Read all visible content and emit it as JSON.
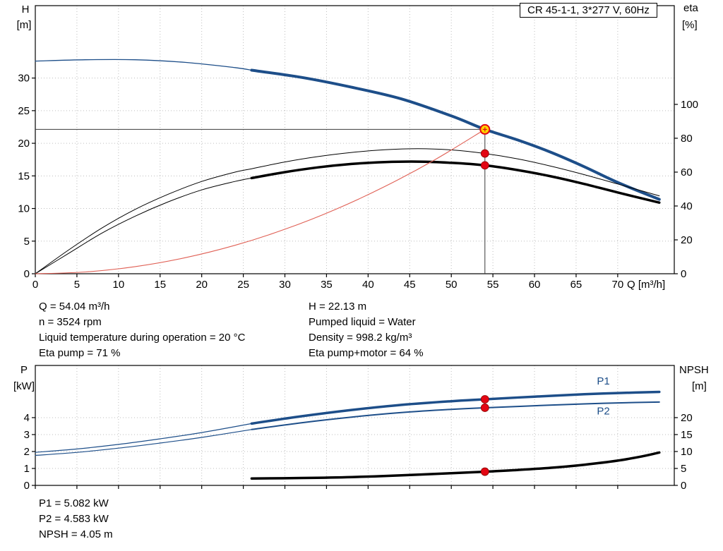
{
  "header": {
    "title_box": "CR 45-1-1, 3*277 V, 60Hz"
  },
  "axes_labels": {
    "h": "H",
    "h_unit": "[m]",
    "eta": "eta",
    "eta_unit": "[%]",
    "q_unit": "Q [m³/h]",
    "p": "P",
    "p_unit": "[kW]",
    "npsh": "NPSH",
    "npsh_unit": "[m]"
  },
  "annotations": {
    "left": [
      "Q = 54.04 m³/h",
      "n = 3524 rpm",
      "Liquid temperature during operation = 20 °C",
      "Eta pump = 71 %"
    ],
    "right": [
      "H = 22.13 m",
      "Pumped liquid = Water",
      "Density = 998.2 kg/m³",
      "Eta pump+motor = 64 %"
    ],
    "bottom": [
      "P1 = 5.082 kW",
      "P2 = 4.583 kW",
      "NPSH = 4.05 m"
    ]
  },
  "colors": {
    "blue": "#1d4e89",
    "black": "#000000",
    "red": "#e06055",
    "marker_red": "#e30613",
    "marker_yellow": "#ffd500"
  },
  "chart_data": [
    {
      "type": "line",
      "title": "Head and efficiency vs flow",
      "x": {
        "label": "Q [m³/h]",
        "min": 0,
        "max": 76.8,
        "ticks": [
          0,
          5,
          10,
          15,
          20,
          25,
          30,
          35,
          40,
          45,
          50,
          55,
          60,
          65,
          70
        ],
        "show_tick_labels": true
      },
      "y_left": {
        "label": "H [m]",
        "min": 0,
        "max": 41.1,
        "ticks": [
          0,
          5,
          10,
          15,
          20,
          25,
          30
        ]
      },
      "y_right": {
        "label": "eta [%]",
        "min": 0,
        "max": 158.3,
        "ticks": [
          0,
          20,
          40,
          60,
          80,
          100
        ]
      },
      "crosshair": {
        "q": 54.04,
        "h": 22.13
      },
      "series": [
        {
          "name": "head",
          "color": "blue",
          "axis": "left",
          "segments": [
            {
              "width": 1.3,
              "points": [
                [
                  0,
                  32.6
                ],
                [
                  6,
                  32.8
                ],
                [
                  12,
                  32.8
                ],
                [
                  18,
                  32.4
                ],
                [
                  24,
                  31.6
                ],
                [
                  26,
                  31.2
                ]
              ]
            },
            {
              "width": 4,
              "points": [
                [
                  26,
                  31.2
                ],
                [
                  32,
                  30.1
                ],
                [
                  38,
                  28.6
                ],
                [
                  44,
                  26.8
                ],
                [
                  50,
                  24.2
                ],
                [
                  54.04,
                  22.13
                ],
                [
                  58,
                  20.5
                ],
                [
                  62,
                  18.6
                ],
                [
                  66,
                  16.4
                ],
                [
                  70,
                  14.0
                ],
                [
                  75,
                  11.4
                ]
              ]
            }
          ]
        },
        {
          "name": "eta-pump",
          "color": "black",
          "axis": "right",
          "segments": [
            {
              "width": 1,
              "points": [
                [
                  0,
                  0
                ],
                [
                  4,
                  14
                ],
                [
                  8,
                  27
                ],
                [
                  12,
                  38
                ],
                [
                  16,
                  47
                ],
                [
                  20,
                  54.5
                ],
                [
                  24,
                  60
                ],
                [
                  26,
                  62
                ],
                [
                  30,
                  66
                ],
                [
                  34,
                  69.2
                ],
                [
                  38,
                  71.6
                ],
                [
                  42,
                  73.2
                ],
                [
                  46,
                  73.8
                ],
                [
                  50,
                  73.1
                ],
                [
                  54.04,
                  71
                ],
                [
                  58,
                  67.8
                ],
                [
                  62,
                  63.5
                ],
                [
                  66,
                  58.5
                ],
                [
                  70,
                  53
                ],
                [
                  75,
                  46
                ]
              ]
            }
          ]
        },
        {
          "name": "eta-pump-motor",
          "color": "black",
          "axis": "right",
          "segments": [
            {
              "width": 1,
              "points": [
                [
                  0,
                  0
                ],
                [
                  4,
                  12
                ],
                [
                  8,
                  24
                ],
                [
                  12,
                  34
                ],
                [
                  16,
                  42.5
                ],
                [
                  20,
                  49.5
                ],
                [
                  24,
                  54.5
                ],
                [
                  26,
                  56.5
                ]
              ]
            },
            {
              "width": 3.5,
              "points": [
                [
                  26,
                  56.5
                ],
                [
                  30,
                  60
                ],
                [
                  34,
                  62.8
                ],
                [
                  38,
                  64.8
                ],
                [
                  42,
                  65.9
                ],
                [
                  46,
                  66.2
                ],
                [
                  50,
                  65.5
                ],
                [
                  54.04,
                  64
                ],
                [
                  58,
                  61.2
                ],
                [
                  62,
                  57.5
                ],
                [
                  66,
                  53
                ],
                [
                  70,
                  48
                ],
                [
                  75,
                  42
                ]
              ]
            }
          ]
        },
        {
          "name": "system-curve",
          "color": "red",
          "axis": "left",
          "segments": [
            {
              "width": 1.1,
              "points": [
                [
                  0,
                  0
                ],
                [
                  6,
                  0.27
                ],
                [
                  12,
                  1.09
                ],
                [
                  18,
                  2.45
                ],
                [
                  24,
                  4.36
                ],
                [
                  30,
                  6.82
                ],
                [
                  36,
                  9.82
                ],
                [
                  42,
                  13.37
                ],
                [
                  48,
                  17.46
                ],
                [
                  54.04,
                  22.13
                ]
              ]
            }
          ]
        }
      ],
      "markers": [
        {
          "style": "duty",
          "q": 54.04,
          "value": 22.13,
          "axis": "left"
        },
        {
          "style": "dot",
          "q": 54.04,
          "value": 71,
          "axis": "right"
        },
        {
          "style": "dot",
          "q": 54.04,
          "value": 64,
          "axis": "right"
        }
      ],
      "labels": []
    },
    {
      "type": "line",
      "title": "Power and NPSH vs flow",
      "x": {
        "label": "",
        "min": 0,
        "max": 76.8,
        "ticks": [
          0,
          5,
          10,
          15,
          20,
          25,
          30,
          35,
          40,
          45,
          50,
          55,
          60,
          65,
          70
        ],
        "show_tick_labels": false
      },
      "y_left": {
        "label": "P [kW]",
        "min": 0,
        "max": 7.08,
        "ticks": [
          0,
          1,
          2,
          3,
          4
        ]
      },
      "y_right": {
        "label": "NPSH [m]",
        "min": 0,
        "max": 35.4,
        "ticks": [
          0,
          5,
          10,
          15,
          20
        ]
      },
      "series": [
        {
          "name": "p1",
          "color": "blue",
          "axis": "left",
          "segments": [
            {
              "width": 1.2,
              "points": [
                [
                  0,
                  1.95
                ],
                [
                  5,
                  2.15
                ],
                [
                  10,
                  2.42
                ],
                [
                  15,
                  2.75
                ],
                [
                  20,
                  3.12
                ],
                [
                  26,
                  3.65
                ]
              ]
            },
            {
              "width": 3.5,
              "points": [
                [
                  26,
                  3.65
                ],
                [
                  32,
                  4.08
                ],
                [
                  38,
                  4.45
                ],
                [
                  44,
                  4.75
                ],
                [
                  50,
                  4.97
                ],
                [
                  54.04,
                  5.082
                ],
                [
                  60,
                  5.24
                ],
                [
                  66,
                  5.38
                ],
                [
                  70,
                  5.45
                ],
                [
                  75,
                  5.52
                ]
              ]
            }
          ]
        },
        {
          "name": "p2",
          "color": "blue",
          "axis": "left",
          "segments": [
            {
              "width": 1.2,
              "points": [
                [
                  0,
                  1.77
                ],
                [
                  5,
                  1.95
                ],
                [
                  10,
                  2.2
                ],
                [
                  15,
                  2.5
                ],
                [
                  20,
                  2.83
                ],
                [
                  26,
                  3.3
                ]
              ]
            },
            {
              "width": 2,
              "points": [
                [
                  26,
                  3.3
                ],
                [
                  32,
                  3.7
                ],
                [
                  38,
                  4.03
                ],
                [
                  44,
                  4.3
                ],
                [
                  50,
                  4.49
                ],
                [
                  54.04,
                  4.583
                ],
                [
                  60,
                  4.7
                ],
                [
                  66,
                  4.81
                ],
                [
                  70,
                  4.87
                ],
                [
                  75,
                  4.92
                ]
              ]
            }
          ]
        },
        {
          "name": "npsh",
          "color": "black",
          "axis": "right",
          "segments": [
            {
              "width": 3.5,
              "points": [
                [
                  26,
                  2.05
                ],
                [
                  32,
                  2.18
                ],
                [
                  38,
                  2.45
                ],
                [
                  44,
                  2.95
                ],
                [
                  50,
                  3.6
                ],
                [
                  54.04,
                  4.05
                ],
                [
                  58,
                  4.55
                ],
                [
                  62,
                  5.2
                ],
                [
                  66,
                  6.1
                ],
                [
                  70,
                  7.3
                ],
                [
                  73,
                  8.6
                ],
                [
                  75,
                  9.7
                ]
              ]
            }
          ]
        }
      ],
      "markers": [
        {
          "style": "dot",
          "q": 54.04,
          "value": 5.082,
          "axis": "left"
        },
        {
          "style": "dot",
          "q": 54.04,
          "value": 4.583,
          "axis": "left"
        },
        {
          "style": "dot",
          "q": 54.04,
          "value": 4.05,
          "axis": "right"
        }
      ],
      "labels": [
        {
          "text": "P1",
          "q": 67.5,
          "p": 5.95,
          "color": "blue"
        },
        {
          "text": "P2",
          "q": 67.5,
          "p": 4.18,
          "color": "blue"
        }
      ]
    }
  ]
}
